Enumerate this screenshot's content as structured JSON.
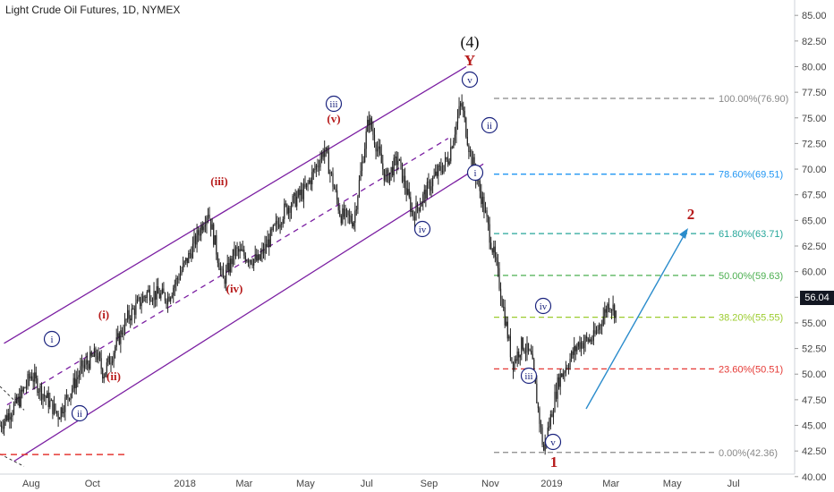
{
  "header": {
    "title": "Light Crude Oil Futures, 1D, NYMEX"
  },
  "colors": {
    "candle": "#222222",
    "channel": "#7b1fa2",
    "wave_blue": "#1a237e",
    "wave_red": "#b71c1c",
    "arrow": "#2b8ccc",
    "fib_100": "#888888",
    "fib_786": "#2196f3",
    "fib_618": "#26a69a",
    "fib_50": "#4caf50",
    "fib_382": "#9ccc2f",
    "fib_236": "#e53935",
    "fib_0": "#888888"
  },
  "chart_data": {
    "type": "candlestick",
    "title": "Light Crude Oil Futures, 1D, NYMEX",
    "y_ticks": [
      "85.00",
      "82.50",
      "80.00",
      "77.50",
      "75.00",
      "72.50",
      "70.00",
      "67.50",
      "65.00",
      "62.50",
      "60.00",
      "57.50",
      "55.00",
      "52.50",
      "50.00",
      "47.50",
      "45.00",
      "42.50",
      "40.00"
    ],
    "x_ticks": [
      "Aug",
      "Oct",
      "2018",
      "Mar",
      "May",
      "Jul",
      "Sep",
      "Nov",
      "2019",
      "Mar",
      "May",
      "Jul"
    ],
    "ylim": [
      38.5,
      86.5
    ],
    "last_price": "56.04",
    "fib_levels": [
      {
        "label": "100.00%(76.90)",
        "value": 76.9,
        "color_key": "fib_100"
      },
      {
        "label": "78.60%(69.51)",
        "value": 69.51,
        "color_key": "fib_786"
      },
      {
        "label": "61.80%(63.71)",
        "value": 63.71,
        "color_key": "fib_618"
      },
      {
        "label": "50.00%(59.63)",
        "value": 59.63,
        "color_key": "fib_50"
      },
      {
        "label": "38.20%(55.55)",
        "value": 55.55,
        "color_key": "fib_382"
      },
      {
        "label": "23.60%(50.51)",
        "value": 50.51,
        "color_key": "fib_236"
      },
      {
        "label": "0.00%(42.36)",
        "value": 42.36,
        "color_key": "fib_0"
      }
    ],
    "wave_labels_circled": [
      "i",
      "ii",
      "iii",
      "iv",
      "v",
      "ii",
      "i",
      "iv",
      "iii",
      "v"
    ],
    "wave_labels_red": [
      "(i)",
      "(ii)",
      "(iii)",
      "(iv)",
      "(v)"
    ],
    "big_labels": {
      "wave4": "(4)",
      "y": "Y",
      "one": "1",
      "two": "2"
    },
    "price_path": [
      {
        "date": "2017-07-01",
        "close": 45.0
      },
      {
        "date": "2017-07-20",
        "close": 47.5
      },
      {
        "date": "2017-08-01",
        "close": 50.0
      },
      {
        "date": "2017-08-10",
        "close": 48.5
      },
      {
        "date": "2017-08-28",
        "close": 46.0
      },
      {
        "date": "2017-09-20",
        "close": 50.5
      },
      {
        "date": "2017-10-05",
        "close": 52.0
      },
      {
        "date": "2017-10-12",
        "close": 50.0
      },
      {
        "date": "2017-11-05",
        "close": 55.5
      },
      {
        "date": "2017-11-25",
        "close": 58.0
      },
      {
        "date": "2017-12-15",
        "close": 57.5
      },
      {
        "date": "2018-01-05",
        "close": 61.5
      },
      {
        "date": "2018-01-24",
        "close": 66.0
      },
      {
        "date": "2018-02-08",
        "close": 59.0
      },
      {
        "date": "2018-02-20",
        "close": 62.0
      },
      {
        "date": "2018-03-15",
        "close": 61.0
      },
      {
        "date": "2018-04-10",
        "close": 66.0
      },
      {
        "date": "2018-05-01",
        "close": 68.0
      },
      {
        "date": "2018-05-20",
        "close": 72.0
      },
      {
        "date": "2018-06-05",
        "close": 65.5
      },
      {
        "date": "2018-06-18",
        "close": 65.0
      },
      {
        "date": "2018-07-03",
        "close": 75.0
      },
      {
        "date": "2018-07-20",
        "close": 69.0
      },
      {
        "date": "2018-08-01",
        "close": 71.0
      },
      {
        "date": "2018-08-16",
        "close": 65.5
      },
      {
        "date": "2018-09-05",
        "close": 69.0
      },
      {
        "date": "2018-09-20",
        "close": 71.0
      },
      {
        "date": "2018-10-03",
        "close": 76.5
      },
      {
        "date": "2018-10-12",
        "close": 71.5
      },
      {
        "date": "2018-10-24",
        "close": 67.0
      },
      {
        "date": "2018-11-08",
        "close": 60.0
      },
      {
        "date": "2018-11-23",
        "close": 51.0
      },
      {
        "date": "2018-12-03",
        "close": 53.0
      },
      {
        "date": "2018-12-12",
        "close": 51.5
      },
      {
        "date": "2018-12-24",
        "close": 42.5
      },
      {
        "date": "2019-01-08",
        "close": 49.5
      },
      {
        "date": "2019-01-28",
        "close": 53.0
      },
      {
        "date": "2019-02-12",
        "close": 53.5
      },
      {
        "date": "2019-02-27",
        "close": 57.0
      },
      {
        "date": "2019-03-06",
        "close": 56.04
      }
    ]
  }
}
